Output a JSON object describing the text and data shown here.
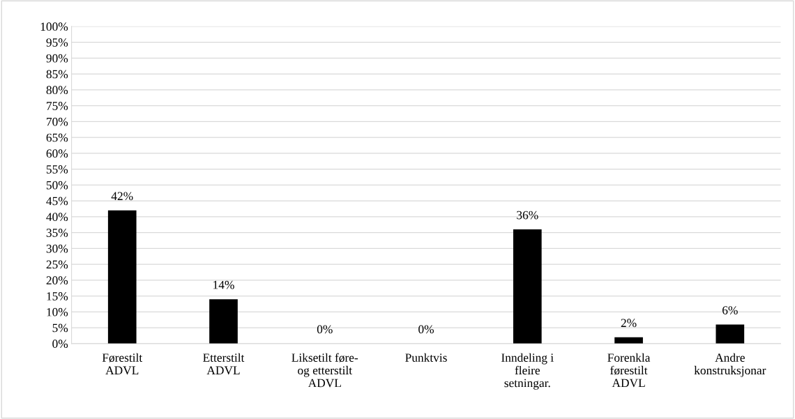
{
  "chart_data": {
    "type": "bar",
    "categories": [
      "Førestilt\nADVL",
      "Etterstilt\nADVL",
      "Liksetilt føre-\nog etterstilt\nADVL",
      "Punktvis",
      "Inndeling i\nfleire\nsetningar.",
      "Forenkla\nførestilt\nADVL",
      "Andre\nkonstruksjonar"
    ],
    "values": [
      42,
      14,
      0,
      0,
      36,
      2,
      6
    ],
    "value_labels": [
      "42%",
      "14%",
      "0%",
      "0%",
      "36%",
      "2%",
      "6%"
    ],
    "color": "#000000",
    "ylim": [
      0,
      100
    ],
    "yticks": [
      {
        "value": 0,
        "label": "0%"
      },
      {
        "value": 5,
        "label": "5%"
      },
      {
        "value": 10,
        "label": "10%"
      },
      {
        "value": 15,
        "label": "15%"
      },
      {
        "value": 20,
        "label": "20%"
      },
      {
        "value": 25,
        "label": "25%"
      },
      {
        "value": 30,
        "label": "30%"
      },
      {
        "value": 35,
        "label": "35%"
      },
      {
        "value": 40,
        "label": "40%"
      },
      {
        "value": 45,
        "label": "45%"
      },
      {
        "value": 50,
        "label": "50%"
      },
      {
        "value": 55,
        "label": "55%"
      },
      {
        "value": 60,
        "label": "60%"
      },
      {
        "value": 65,
        "label": "65%"
      },
      {
        "value": 70,
        "label": "70%"
      },
      {
        "value": 75,
        "label": "75%"
      },
      {
        "value": 80,
        "label": "80%"
      },
      {
        "value": 85,
        "label": "85%"
      },
      {
        "value": 90,
        "label": "90%"
      },
      {
        "value": 95,
        "label": "95%"
      },
      {
        "value": 100,
        "label": "100%"
      }
    ],
    "grid": "y"
  }
}
